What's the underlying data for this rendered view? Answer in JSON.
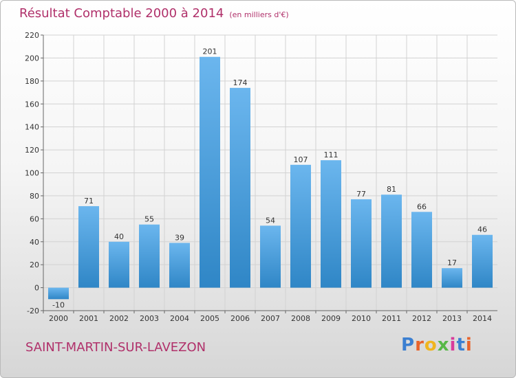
{
  "header": {
    "title": "Résultat Comptable 2000 à 2014",
    "subtitle": "(en milliers d'€)"
  },
  "footer": {
    "place": "SAINT-MARTIN-SUR-LAVEZON",
    "logo_text": "Proxiti",
    "logo_colors": [
      "#3b7fd1",
      "#e8632b",
      "#f0b51f",
      "#56b847",
      "#d83b9b",
      "#3b7fd1",
      "#e8632b"
    ]
  },
  "colors": {
    "bar_light": "#6bb6ee",
    "bar_dark": "#2f86c6",
    "title": "#b0306a"
  },
  "chart_data": {
    "type": "bar",
    "categories": [
      "2000",
      "2001",
      "2002",
      "2003",
      "2004",
      "2005",
      "2006",
      "2007",
      "2008",
      "2009",
      "2010",
      "2011",
      "2012",
      "2013",
      "2014"
    ],
    "values": [
      -10,
      71,
      40,
      55,
      39,
      201,
      174,
      54,
      107,
      111,
      77,
      81,
      66,
      17,
      46
    ],
    "ylim": [
      -20,
      220
    ],
    "yticks": [
      -20,
      0,
      20,
      40,
      60,
      80,
      100,
      120,
      140,
      160,
      180,
      200,
      220
    ],
    "grid": true,
    "title": "Résultat Comptable 2000 à 2014",
    "ylabel": "",
    "xlabel": ""
  }
}
